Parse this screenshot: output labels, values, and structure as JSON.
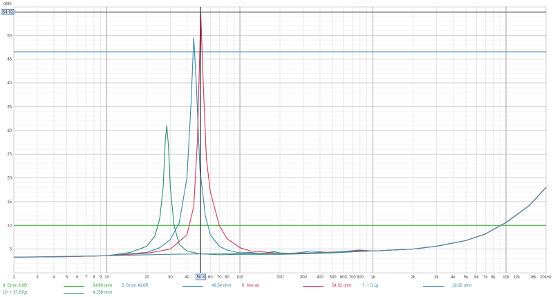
{
  "chart_data": {
    "type": "line",
    "title": "",
    "ylabel": "ohm",
    "xlabel": "",
    "x_scale": "log",
    "xlim": [
      2,
      20000
    ],
    "ylim": [
      0,
      56
    ],
    "grid": true,
    "y_ticks": [
      {
        "v": 5,
        "label": "5"
      },
      {
        "v": 10,
        "label": "10"
      },
      {
        "v": 15,
        "label": "15"
      },
      {
        "v": 20,
        "label": "20"
      },
      {
        "v": 25,
        "label": "25"
      },
      {
        "v": 30,
        "label": "30"
      },
      {
        "v": 35,
        "label": "35"
      },
      {
        "v": 40,
        "label": "40"
      },
      {
        "v": 45,
        "label": "45"
      },
      {
        "v": 50,
        "label": "50"
      }
    ],
    "x_ticks": [
      {
        "v": 2,
        "label": "2"
      },
      {
        "v": 3,
        "label": "3"
      },
      {
        "v": 4,
        "label": "4"
      },
      {
        "v": 5,
        "label": "5"
      },
      {
        "v": 6,
        "label": "6"
      },
      {
        "v": 7,
        "label": "7"
      },
      {
        "v": 8,
        "label": "8"
      },
      {
        "v": 9,
        "label": "9"
      },
      {
        "v": 10,
        "label": "10"
      },
      {
        "v": 20,
        "label": "20"
      },
      {
        "v": 30,
        "label": "30"
      },
      {
        "v": 40,
        "label": "40"
      },
      {
        "v": 60,
        "label": "60"
      },
      {
        "v": 70,
        "label": "70"
      },
      {
        "v": 80,
        "label": "80"
      },
      {
        "v": 100,
        "label": "100"
      },
      {
        "v": 200,
        "label": "200"
      },
      {
        "v": 300,
        "label": "300"
      },
      {
        "v": 400,
        "label": "400"
      },
      {
        "v": 500,
        "label": "500"
      },
      {
        "v": 600,
        "label": "600"
      },
      {
        "v": 700,
        "label": "700"
      },
      {
        "v": 800,
        "label": "800"
      },
      {
        "v": 1000,
        "label": "1k"
      },
      {
        "v": 2000,
        "label": "2k"
      },
      {
        "v": 3000,
        "label": "3k"
      },
      {
        "v": 4000,
        "label": "4k"
      },
      {
        "v": 5000,
        "label": "5k"
      },
      {
        "v": 6000,
        "label": "6k"
      },
      {
        "v": 7000,
        "label": "7k"
      },
      {
        "v": 8000,
        "label": "8k"
      },
      {
        "v": 10000,
        "label": "10k"
      },
      {
        "v": 12000,
        "label": "12k",
        "faded": true
      },
      {
        "v": 16000,
        "label": "16k",
        "faded": true
      },
      {
        "v": 20000,
        "label": "20kHz"
      }
    ],
    "cursor": {
      "x": 50.8,
      "x_label": "50.8",
      "y": 54.92,
      "y_label": "54,92",
      "color": "#222222"
    },
    "ref_lines": [
      {
        "y": 46.54,
        "color": "#3a86ac"
      },
      {
        "y": 10,
        "color": "#2eaa2e"
      }
    ],
    "series": [
      {
        "color": "#2e8a6e",
        "points": [
          [
            2,
            3.3
          ],
          [
            5,
            3.4
          ],
          [
            10,
            3.6
          ],
          [
            15,
            4.3
          ],
          [
            20,
            5.6
          ],
          [
            23,
            7.8
          ],
          [
            25,
            11.5
          ],
          [
            26.5,
            18
          ],
          [
            27.5,
            28
          ],
          [
            28.2,
            31
          ],
          [
            29,
            27
          ],
          [
            30,
            18
          ],
          [
            32,
            10
          ],
          [
            35,
            6
          ],
          [
            40,
            4.6
          ],
          [
            50,
            4
          ],
          [
            70,
            3.8
          ],
          [
            100,
            3.9
          ],
          [
            150,
            3.9
          ],
          [
            200,
            3.9
          ],
          [
            300,
            4
          ],
          [
            500,
            4.2
          ],
          [
            800,
            4.5
          ],
          [
            1000,
            4.6
          ],
          [
            2000,
            5
          ],
          [
            3000,
            5.6
          ],
          [
            5000,
            6.8
          ],
          [
            7000,
            8.2
          ],
          [
            10000,
            10.6
          ],
          [
            15000,
            14.2
          ],
          [
            20000,
            18
          ]
        ]
      },
      {
        "color": "#3a86ac",
        "points": [
          [
            2,
            3.3
          ],
          [
            5,
            3.4
          ],
          [
            10,
            3.6
          ],
          [
            20,
            4.3
          ],
          [
            25,
            5.3
          ],
          [
            30,
            7
          ],
          [
            35,
            10.5
          ],
          [
            40,
            20
          ],
          [
            43,
            36
          ],
          [
            45,
            49.5
          ],
          [
            47,
            40
          ],
          [
            50,
            22
          ],
          [
            55,
            12
          ],
          [
            60,
            8
          ],
          [
            70,
            5.6
          ],
          [
            80,
            4.8
          ],
          [
            100,
            4.2
          ],
          [
            120,
            4.3
          ],
          [
            150,
            4
          ],
          [
            180,
            4.5
          ],
          [
            200,
            4.2
          ],
          [
            250,
            4.1
          ],
          [
            350,
            4.6
          ],
          [
            450,
            4.3
          ],
          [
            600,
            4.5
          ],
          [
            800,
            4.8
          ],
          [
            1000,
            4.6
          ],
          [
            2000,
            5
          ],
          [
            3000,
            5.6
          ],
          [
            5000,
            6.8
          ],
          [
            7000,
            8.2
          ],
          [
            10000,
            10.6
          ],
          [
            15000,
            14.2
          ],
          [
            20000,
            18
          ]
        ]
      },
      {
        "color": "#c8375a",
        "points": [
          [
            2,
            3.3
          ],
          [
            5,
            3.4
          ],
          [
            10,
            3.6
          ],
          [
            20,
            4.1
          ],
          [
            30,
            5
          ],
          [
            40,
            8
          ],
          [
            45,
            14
          ],
          [
            48,
            28
          ],
          [
            50.8,
            54.92
          ],
          [
            53,
            40
          ],
          [
            56,
            24
          ],
          [
            60,
            17
          ],
          [
            70,
            10
          ],
          [
            80,
            7.2
          ],
          [
            100,
            5.3
          ],
          [
            120,
            4.6
          ],
          [
            150,
            4.4
          ],
          [
            200,
            4.1
          ],
          [
            300,
            4.1
          ],
          [
            400,
            4.3
          ],
          [
            600,
            4.4
          ],
          [
            800,
            4.7
          ],
          [
            1000,
            4.6
          ],
          [
            2000,
            5
          ],
          [
            3000,
            5.6
          ],
          [
            5000,
            6.8
          ],
          [
            7000,
            8.2
          ],
          [
            10000,
            10.6
          ],
          [
            15000,
            14.2
          ],
          [
            20000,
            18
          ]
        ]
      },
      {
        "color": "#4a8aa0",
        "points": [
          [
            2,
            3.3
          ],
          [
            10,
            3.6
          ],
          [
            30,
            3.9
          ],
          [
            60,
            4
          ],
          [
            100,
            4.1
          ],
          [
            200,
            4.1
          ],
          [
            500,
            4.3
          ],
          [
            1000,
            4.6
          ],
          [
            2000,
            5
          ],
          [
            3000,
            5.6
          ],
          [
            5000,
            6.8
          ],
          [
            7000,
            8.2
          ],
          [
            10000,
            10.6
          ],
          [
            15000,
            14.2
          ],
          [
            20000,
            18
          ]
        ]
      }
    ]
  },
  "legend": {
    "rows": [
      [
        {
          "label": "4: Dmm 6,9R",
          "label_color": "#2eaa2e",
          "line_color": "#2eaa2e",
          "value": "9,090 ohm",
          "value_color": "#2eaa2e"
        },
        {
          "label": "5: Dmm 46,6R",
          "label_color": "#3a86ac",
          "line_color": "#3a86ac",
          "value": "46,54 ohm",
          "value_color": "#3a86ac"
        },
        {
          "label": "6: free air",
          "label_color": "#c8375a",
          "line_color": "#c8375a",
          "value": "54,92 ohm",
          "value_color": "#c8375a"
        },
        {
          "label": "7: + 5,1g",
          "label_color": "#3a86ac",
          "line_color": "#3a86ac",
          "value": "18,32 ohm",
          "value_color": "#3a86ac"
        }
      ],
      [
        {
          "label": "10: + 37,67gr",
          "label_color": "#2e8a6e",
          "line_color": "#2e8a6e",
          "value": "4,159 ohm",
          "value_color": "#2e8a6e"
        }
      ]
    ]
  }
}
